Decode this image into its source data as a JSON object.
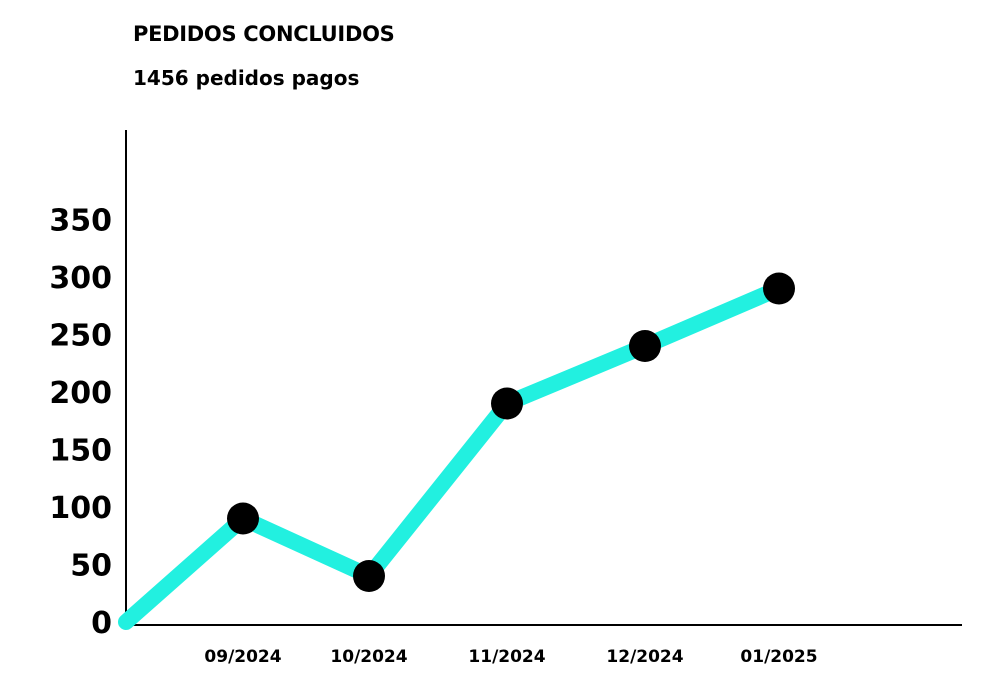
{
  "chart_data": {
    "type": "line",
    "title": "PEDIDOS CONCLUIDOS",
    "subtitle": "1456 pedidos pagos",
    "xlabel": "",
    "ylabel": "",
    "x": [
      "",
      "09/2024",
      "10/2024",
      "11/2024",
      "12/2024",
      "01/2025"
    ],
    "series": [
      {
        "values": [
          0,
          90,
          40,
          190,
          240,
          290
        ]
      }
    ],
    "yticks": [
      0,
      50,
      100,
      150,
      200,
      250,
      300,
      350
    ],
    "ylim": [
      0,
      380
    ],
    "grid": false,
    "legend": "none",
    "colors": {
      "line": "#22f0e0",
      "marker": "#000000",
      "axis": "#000000"
    }
  }
}
